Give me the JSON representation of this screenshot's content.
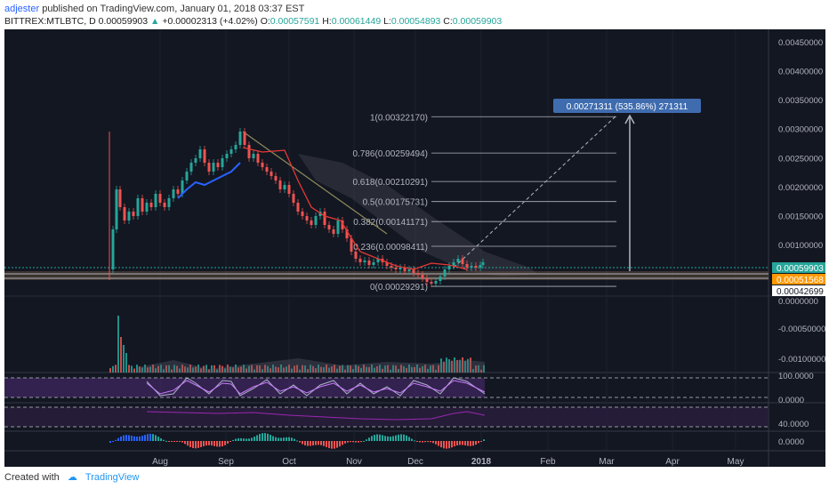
{
  "header": {
    "user": "adjester",
    "published": " published on TradingView.com, January 01, 2018 03:37 EST",
    "symbol": "BITTREX:MTLBTC, D",
    "close": "0.00059903",
    "change": "+0.00002313 (+4.02%)",
    "o_label": "O:",
    "o": "0.00057591",
    "h_label": "H:",
    "h": "0.00061449",
    "l_label": "L:",
    "l": "0.00054893",
    "c_label": "C:",
    "c": "0.00059903"
  },
  "price_axis": [
    "0.00450000",
    "0.00400000",
    "0.00350000",
    "0.00300000",
    "0.00250000",
    "0.00200000",
    "0.00150000",
    "0.00100000"
  ],
  "price_tags": {
    "last": "0.00059903",
    "ma": "0.00051568",
    "low": "0.00042699"
  },
  "volume_axis": [
    "0.0000000",
    "-0.00050000",
    "-0.00100000"
  ],
  "rsi_axis": [
    "100.0000",
    "0.0000"
  ],
  "ind2_axis": [
    "40.0000"
  ],
  "macd_axis": [
    "0.0000"
  ],
  "time_axis": [
    "Aug",
    "Sep",
    "Oct",
    "Nov",
    "Dec",
    "2018",
    "Feb",
    "Mar",
    "Apr",
    "May"
  ],
  "fib_levels": [
    {
      "label": "1(0.00322170)",
      "value": 0.0032217
    },
    {
      "label": "0.786(0.00259494)",
      "value": 0.00259494
    },
    {
      "label": "0.618(0.00210291)",
      "value": 0.00210291
    },
    {
      "label": "0.5(0.00175731)",
      "value": 0.00175731
    },
    {
      "label": "0.382(0.00141171)",
      "value": 0.00141171
    },
    {
      "label": "0.236(0.00098411)",
      "value": 0.00098411
    },
    {
      "label": "0(0.00029291)",
      "value": 0.00029291
    }
  ],
  "measure_label": "0.00271311 (535.86%) 271311",
  "footer": {
    "created": "Created with",
    "brand": "TradingView"
  },
  "colors": {
    "bg": "#131722",
    "up": "#26a69a",
    "down": "#ef5350",
    "fib": "#b2b5be",
    "ma": "#e53935",
    "rsi_band": "#4a2a6e",
    "tag_last": "#26a69a",
    "tag_ma": "#ff9800"
  }
}
